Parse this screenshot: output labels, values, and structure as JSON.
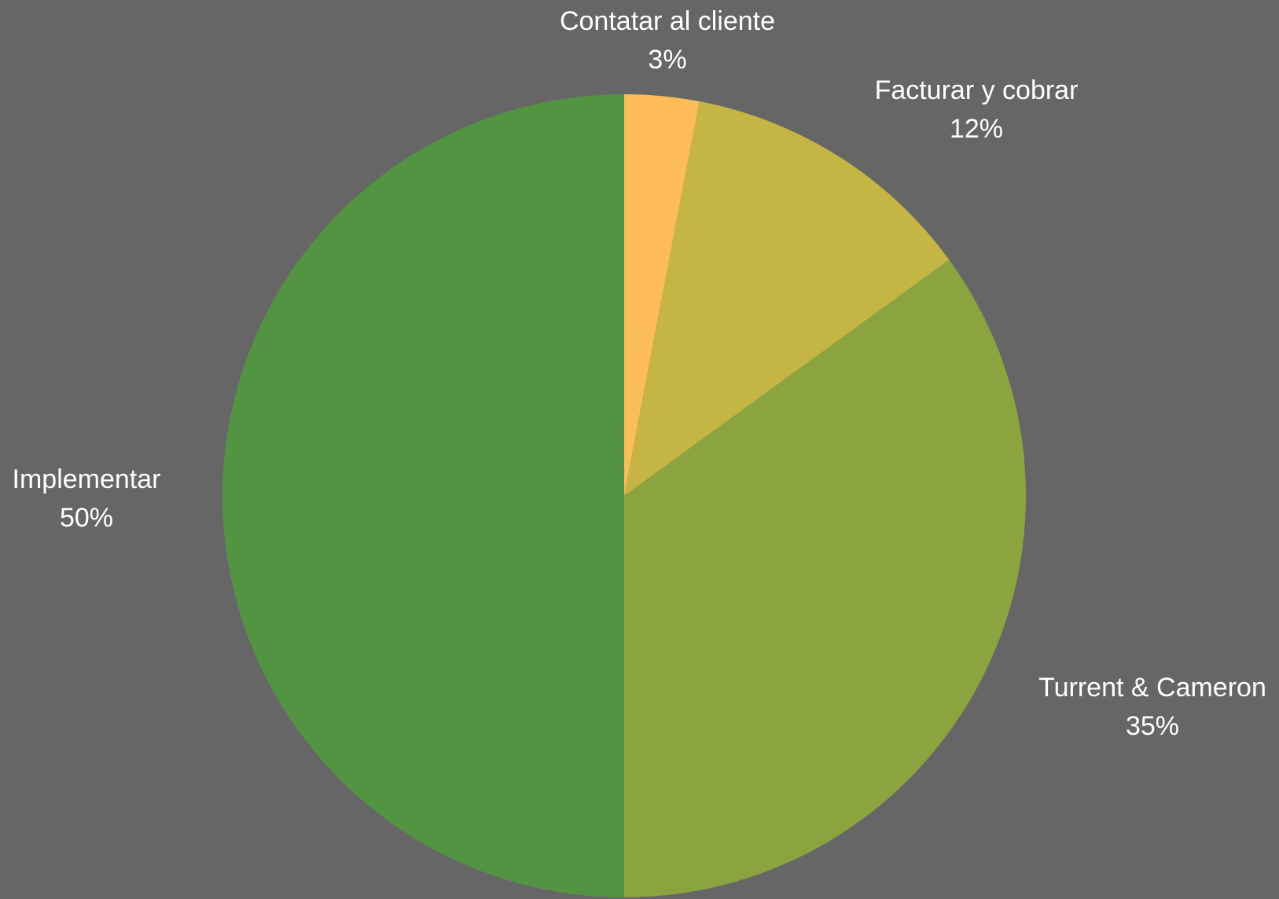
{
  "chart_data": {
    "type": "pie",
    "background_color": "#666666",
    "label_color": "#ffffff",
    "start_angle_deg": 0,
    "direction": "clockwise",
    "slices": [
      {
        "label": "Contatar al cliente",
        "percent_label": "3%",
        "value": 3,
        "color": "#FDBB59"
      },
      {
        "label": "Facturar y cobrar",
        "percent_label": "12%",
        "value": 12,
        "color": "#C5B544"
      },
      {
        "label": "Turrent & Cameron",
        "percent_label": "35%",
        "value": 35,
        "color": "#8CA43F"
      },
      {
        "label": "Implementar",
        "percent_label": "50%",
        "value": 50,
        "color": "#529442"
      }
    ]
  }
}
